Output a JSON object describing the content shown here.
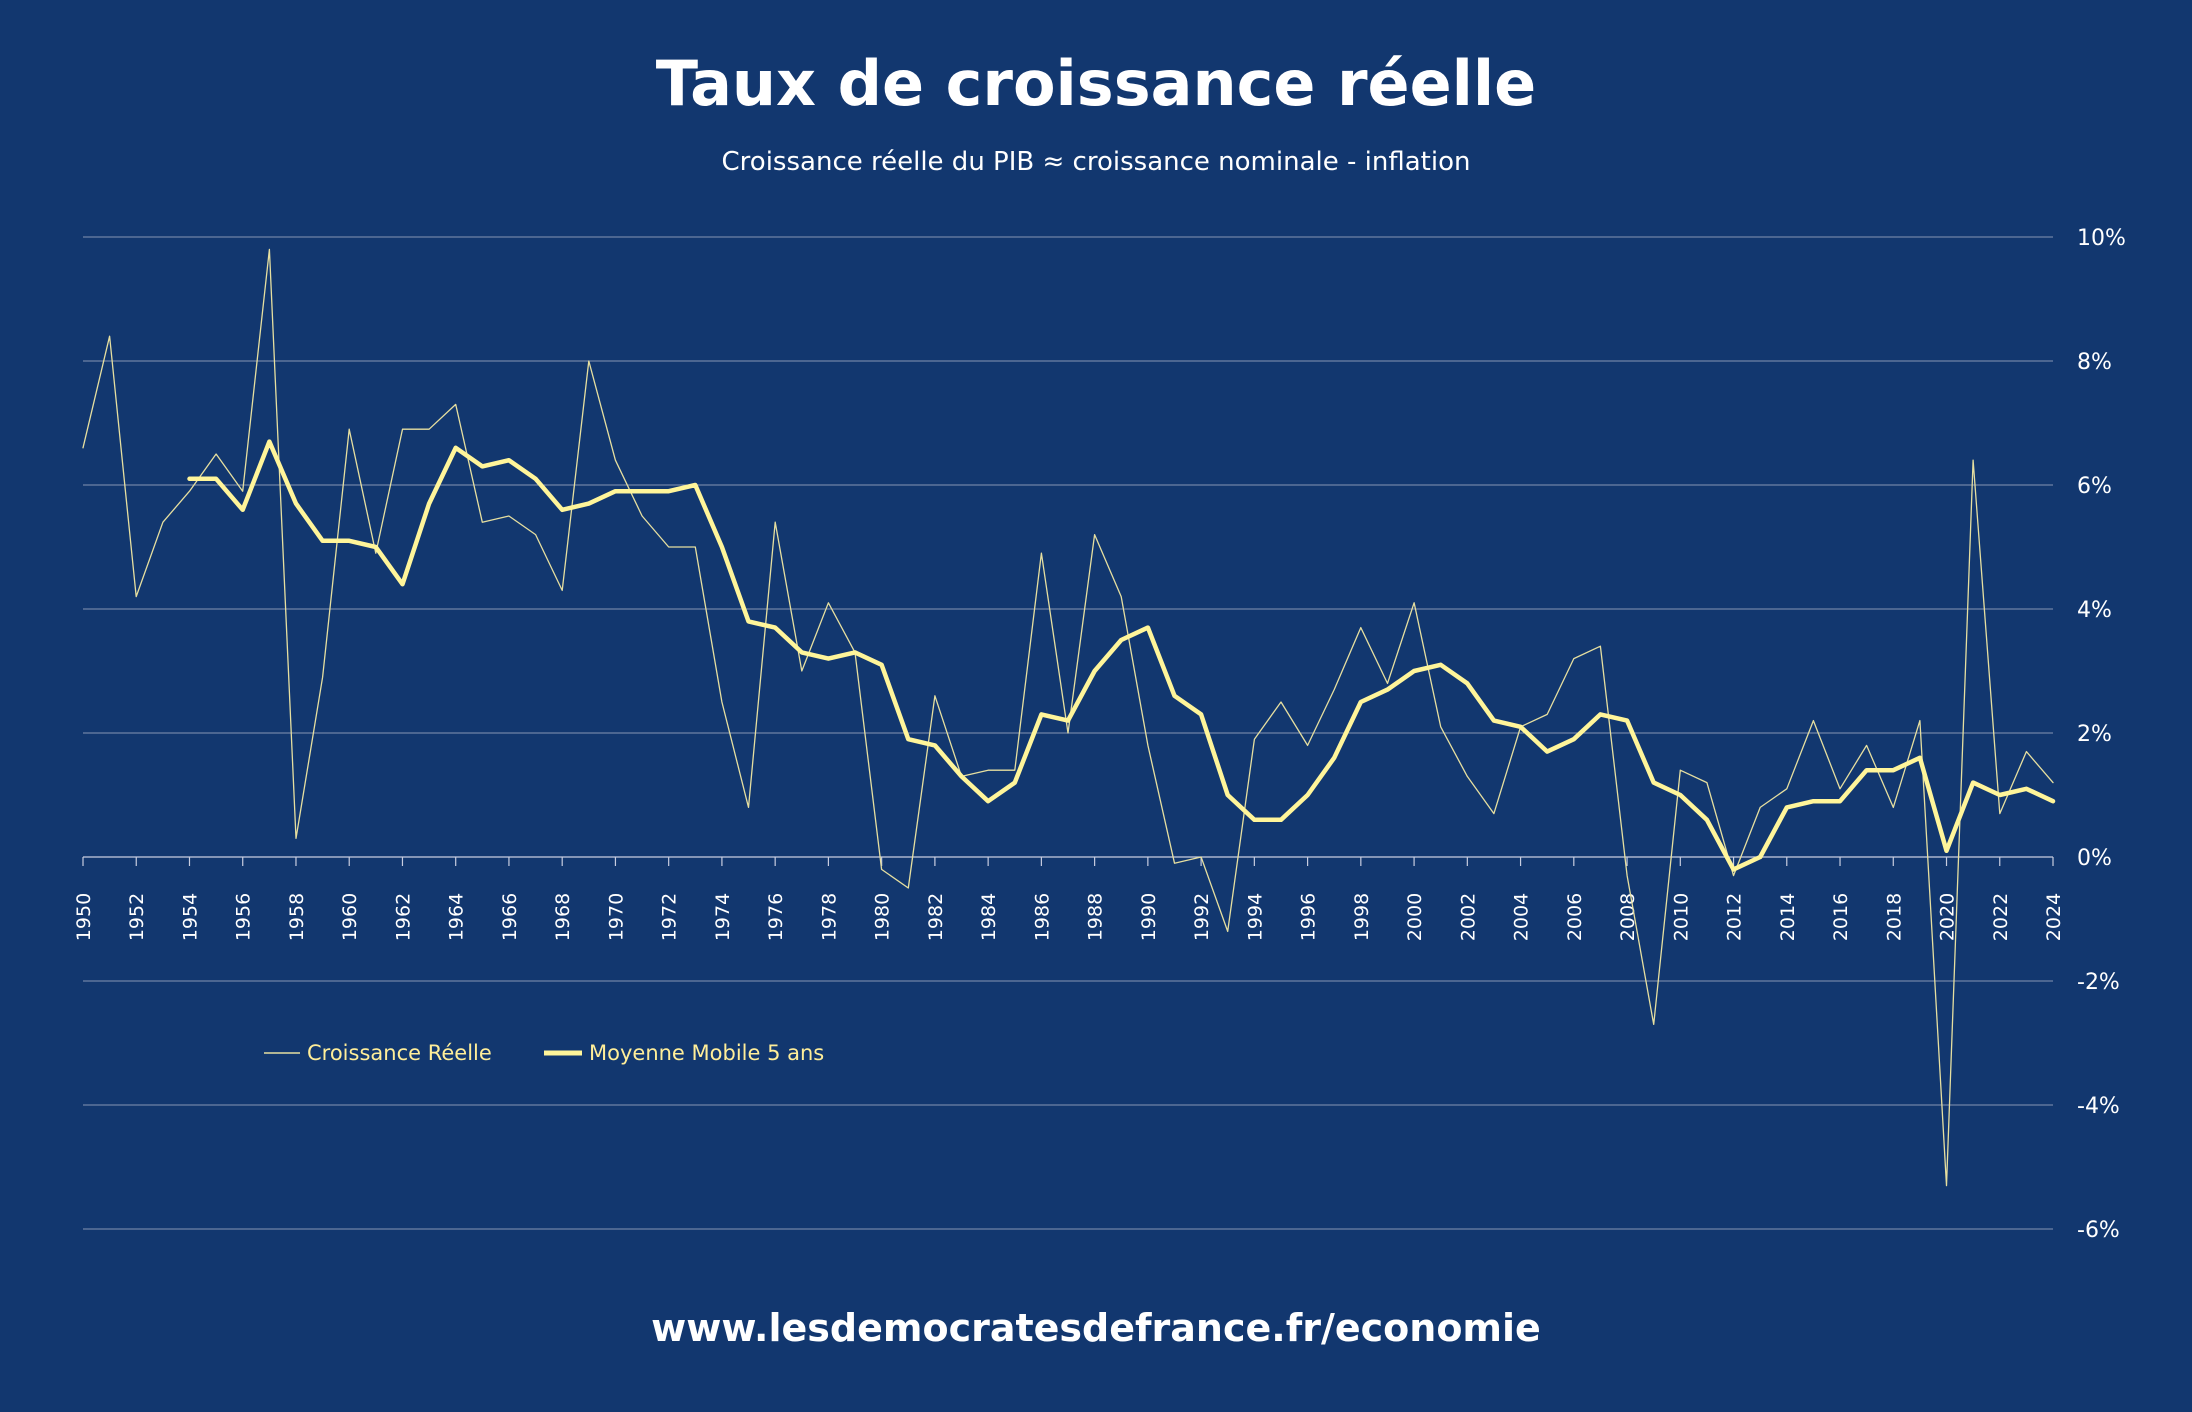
{
  "title": "Taux de croissance réelle",
  "subtitle": "Croissance réelle du PIB ≈ croissance nominale - inflation",
  "footer": "www.lesdemocratesdefrance.fr/economie",
  "colors": {
    "background": "#12376f",
    "series_thin": "#e6dfa0",
    "series_thick": "#fff59a",
    "grid": "#8795b3"
  },
  "chart_data": {
    "type": "line",
    "title": "Taux de croissance réelle",
    "subtitle": "Croissance réelle du PIB ≈ croissance nominale - inflation",
    "x_tick_labels": [
      "1950",
      "1952",
      "1954",
      "1956",
      "1958",
      "1960",
      "1962",
      "1964",
      "1966",
      "1968",
      "1970",
      "1972",
      "1974",
      "1976",
      "1978",
      "1980",
      "1982",
      "1984",
      "1986",
      "1988",
      "1990",
      "1992",
      "1994",
      "1996",
      "1998",
      "2000",
      "2002",
      "2004",
      "2006",
      "2008",
      "2010",
      "2012",
      "2014",
      "2016",
      "2018",
      "2020",
      "2022",
      "2024"
    ],
    "y_tick_labels": [
      "10%",
      "8%",
      "6%",
      "4%",
      "2%",
      "0%",
      "-2%",
      "-4%",
      "-6%"
    ],
    "ylim": [
      -6,
      10
    ],
    "xlim": [
      1950,
      2024
    ],
    "y_axis_position": "right",
    "grid": true,
    "legend_position": "bottom-left",
    "series": [
      {
        "name": "Croissance Réelle",
        "style": "thin",
        "x": [
          1950,
          1951,
          1952,
          1953,
          1954,
          1955,
          1956,
          1957,
          1958,
          1959,
          1960,
          1961,
          1962,
          1963,
          1964,
          1965,
          1966,
          1967,
          1968,
          1969,
          1970,
          1971,
          1972,
          1973,
          1974,
          1975,
          1976,
          1977,
          1978,
          1979,
          1980,
          1981,
          1982,
          1983,
          1984,
          1985,
          1986,
          1987,
          1988,
          1989,
          1990,
          1991,
          1992,
          1993,
          1994,
          1995,
          1996,
          1997,
          1998,
          1999,
          2000,
          2001,
          2002,
          2003,
          2004,
          2005,
          2006,
          2007,
          2008,
          2009,
          2010,
          2011,
          2012,
          2013,
          2014,
          2015,
          2016,
          2017,
          2018,
          2019,
          2020,
          2021,
          2022,
          2023,
          2024
        ],
        "values": [
          6.6,
          8.4,
          4.2,
          5.4,
          5.9,
          6.5,
          5.9,
          9.8,
          0.3,
          2.9,
          6.9,
          4.9,
          6.9,
          6.9,
          7.3,
          5.4,
          5.5,
          5.2,
          4.3,
          8.0,
          6.4,
          5.5,
          5.0,
          5.0,
          2.5,
          0.8,
          5.4,
          3.0,
          4.1,
          3.3,
          -0.2,
          -0.5,
          2.6,
          1.3,
          1.4,
          1.4,
          4.9,
          2.0,
          5.2,
          4.2,
          1.8,
          -0.1,
          0.0,
          -1.2,
          1.9,
          2.5,
          1.8,
          2.7,
          3.7,
          2.8,
          4.1,
          2.1,
          1.3,
          0.7,
          2.1,
          2.3,
          3.2,
          3.4,
          -0.3,
          -2.7,
          1.4,
          1.2,
          -0.3,
          0.8,
          1.1,
          2.2,
          1.1,
          1.8,
          0.8,
          2.2,
          -5.3,
          6.4,
          0.7,
          1.7,
          1.2
        ]
      },
      {
        "name": "Moyenne Mobile 5 ans",
        "style": "thick",
        "x": [
          1954,
          1955,
          1956,
          1957,
          1958,
          1959,
          1960,
          1961,
          1962,
          1963,
          1964,
          1965,
          1966,
          1967,
          1968,
          1969,
          1970,
          1971,
          1972,
          1973,
          1974,
          1975,
          1976,
          1977,
          1978,
          1979,
          1980,
          1981,
          1982,
          1983,
          1984,
          1985,
          1986,
          1987,
          1988,
          1989,
          1990,
          1991,
          1992,
          1993,
          1994,
          1995,
          1996,
          1997,
          1998,
          1999,
          2000,
          2001,
          2002,
          2003,
          2004,
          2005,
          2006,
          2007,
          2008,
          2009,
          2010,
          2011,
          2012,
          2013,
          2014,
          2015,
          2016,
          2017,
          2018,
          2019,
          2020,
          2021,
          2022,
          2023,
          2024
        ],
        "values": [
          6.1,
          6.1,
          5.6,
          6.7,
          5.7,
          5.1,
          5.1,
          5.0,
          4.4,
          5.7,
          6.6,
          6.3,
          6.4,
          6.1,
          5.6,
          5.7,
          5.9,
          5.9,
          5.9,
          6.0,
          5.0,
          3.8,
          3.7,
          3.3,
          3.2,
          3.3,
          3.1,
          1.9,
          1.8,
          1.3,
          0.9,
          1.2,
          2.3,
          2.2,
          3.0,
          3.5,
          3.7,
          2.6,
          2.3,
          1.0,
          0.6,
          0.6,
          1.0,
          1.6,
          2.5,
          2.7,
          3.0,
          3.1,
          2.8,
          2.2,
          2.1,
          1.7,
          1.9,
          2.3,
          2.2,
          1.2,
          1.0,
          0.6,
          -0.2,
          0.0,
          0.8,
          0.9,
          0.9,
          1.4,
          1.4,
          1.6,
          0.1,
          1.2,
          1.0,
          1.1,
          0.9
        ]
      }
    ]
  }
}
